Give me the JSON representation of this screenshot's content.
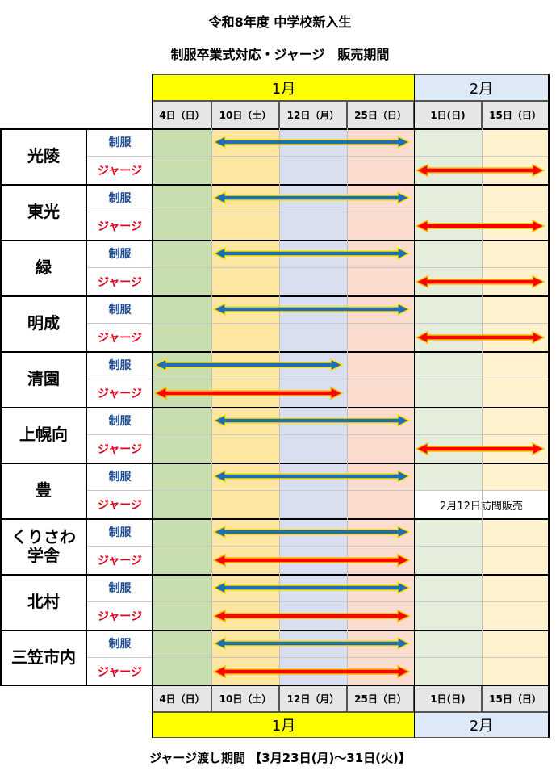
{
  "title_line1": "令和8年度 中学校新入生",
  "title_line2": "制服卒業式対応・ジャージ　販売期間",
  "months": [
    "1月",
    "2月"
  ],
  "dates": [
    "4日（日）",
    "10日（土）",
    "12日（月）",
    "25日（日）",
    "1日(日)",
    "15日（日）"
  ],
  "labels": {
    "uniform": "制服",
    "jersey": "ジャージ"
  },
  "schools": [
    {
      "name": "光陵",
      "uniform": [
        1,
        3
      ],
      "jersey": [
        4,
        5
      ]
    },
    {
      "name": "東光",
      "uniform": [
        1,
        3
      ],
      "jersey": [
        4,
        5
      ]
    },
    {
      "name": "緑",
      "uniform": [
        1,
        3
      ],
      "jersey": [
        4,
        5
      ]
    },
    {
      "name": "明成",
      "uniform": [
        1,
        3
      ],
      "jersey": [
        4,
        5
      ]
    },
    {
      "name": "清園",
      "uniform": [
        0,
        2
      ],
      "jersey": [
        0,
        2
      ]
    },
    {
      "name": "上幌向",
      "uniform": [
        1,
        3
      ],
      "jersey": [
        4,
        5
      ]
    },
    {
      "name": "豊",
      "uniform": [
        1,
        3
      ],
      "jersey": null,
      "jersey_note": "2月12日訪問販売"
    },
    {
      "name": "くりさわ\n学舎",
      "uniform": [
        1,
        3
      ],
      "jersey": [
        1,
        3
      ]
    },
    {
      "name": "北村",
      "uniform": [
        1,
        3
      ],
      "jersey": [
        1,
        3
      ]
    },
    {
      "name": "三笠市内",
      "uniform": [
        1,
        3
      ],
      "jersey": [
        1,
        3
      ]
    }
  ],
  "footer": "ジャージ渡し期間 【3月23日(月)～31日(火)】",
  "colors": {
    "uniform_arrow": "#1f6db5",
    "jersey_arrow": "#ff0000",
    "jersey_outline": "#f2c200",
    "uniform_outline": "#ffe000",
    "uniform_label": "#1f4e96",
    "jersey_label": "#e8001c"
  }
}
